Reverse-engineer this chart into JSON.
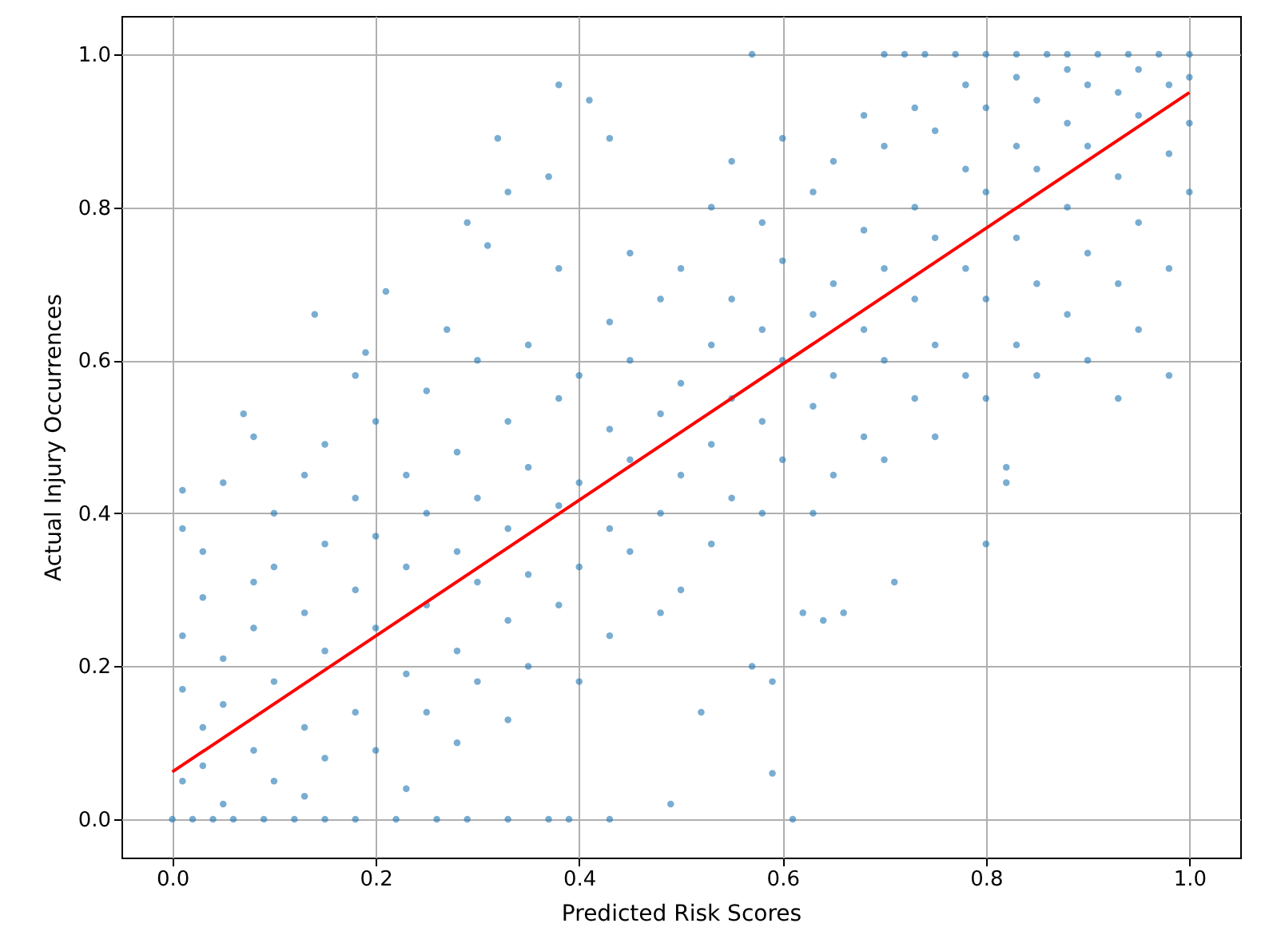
{
  "chart_data": {
    "type": "scatter",
    "xlabel": "Predicted Risk Scores",
    "ylabel": "Actual Injury Occurrences",
    "xlim": [
      -0.05,
      1.05
    ],
    "ylim": [
      -0.05,
      1.05
    ],
    "xticks": [
      {
        "value": 0,
        "label": "0.0"
      },
      {
        "value": 0.2,
        "label": "0.2"
      },
      {
        "value": 0.4,
        "label": "0.4"
      },
      {
        "value": 0.6,
        "label": "0.6"
      },
      {
        "value": 0.8,
        "label": "0.8"
      },
      {
        "value": 1,
        "label": "1.0"
      }
    ],
    "yticks": [
      {
        "value": 0,
        "label": "0.0"
      },
      {
        "value": 0.2,
        "label": "0.2"
      },
      {
        "value": 0.4,
        "label": "0.4"
      },
      {
        "value": 0.6,
        "label": "0.6"
      },
      {
        "value": 0.8,
        "label": "0.8"
      },
      {
        "value": 1,
        "label": "1.0"
      }
    ],
    "grid": true,
    "series": [
      {
        "color": "#1f77b4",
        "marker": "circle",
        "x": [
          0,
          0.02,
          0.04,
          0.06,
          0.09,
          0.12,
          0.15,
          0.18,
          0.22,
          0.26,
          0.29,
          0.33,
          0.37,
          0.39,
          0.43,
          0.57,
          0.7,
          0.72,
          0.74,
          0.77,
          0.8,
          0.83,
          0.86,
          0.88,
          0.91,
          0.94,
          0.97,
          1,
          0.38,
          0.41,
          0.32,
          0.43,
          0.37,
          0.33,
          0.29,
          0.31,
          0.21,
          0.14,
          0.19,
          0.07,
          0.27,
          0.59,
          0.61,
          0.49,
          0.59,
          0.57,
          0.52,
          0.8,
          0.82,
          0.82,
          0.71,
          0.66,
          0.64,
          0.62,
          0.01,
          0.01,
          0.01,
          0.01,
          0.01,
          0.03,
          0.03,
          0.03,
          0.03,
          0.05,
          0.05,
          0.05,
          0.05,
          0.08,
          0.08,
          0.08,
          0.08,
          0.1,
          0.1,
          0.1,
          0.1,
          0.13,
          0.13,
          0.13,
          0.13,
          0.15,
          0.15,
          0.15,
          0.15,
          0.18,
          0.18,
          0.18,
          0.18,
          0.2,
          0.2,
          0.2,
          0.2,
          0.23,
          0.23,
          0.23,
          0.23,
          0.25,
          0.25,
          0.25,
          0.25,
          0.28,
          0.28,
          0.28,
          0.28,
          0.3,
          0.3,
          0.3,
          0.3,
          0.33,
          0.33,
          0.33,
          0.33,
          0.35,
          0.35,
          0.35,
          0.35,
          0.38,
          0.38,
          0.38,
          0.38,
          0.4,
          0.4,
          0.4,
          0.4,
          0.43,
          0.43,
          0.43,
          0.43,
          0.45,
          0.45,
          0.45,
          0.45,
          0.48,
          0.48,
          0.48,
          0.48,
          0.5,
          0.5,
          0.5,
          0.5,
          0.53,
          0.53,
          0.53,
          0.53,
          0.55,
          0.55,
          0.55,
          0.55,
          0.58,
          0.58,
          0.58,
          0.58,
          0.6,
          0.6,
          0.6,
          0.6,
          0.63,
          0.63,
          0.63,
          0.63,
          0.65,
          0.65,
          0.65,
          0.65,
          0.68,
          0.68,
          0.68,
          0.68,
          0.7,
          0.7,
          0.7,
          0.7,
          0.73,
          0.73,
          0.73,
          0.73,
          0.75,
          0.75,
          0.75,
          0.75,
          0.78,
          0.78,
          0.78,
          0.78,
          0.8,
          0.8,
          0.8,
          0.8,
          0.83,
          0.83,
          0.83,
          0.83,
          0.85,
          0.85,
          0.85,
          0.85,
          0.88,
          0.88,
          0.88,
          0.88,
          0.9,
          0.9,
          0.9,
          0.9,
          0.93,
          0.93,
          0.93,
          0.93,
          0.95,
          0.95,
          0.95,
          0.95,
          0.98,
          0.98,
          0.98,
          0.98,
          1,
          1,
          1
        ],
        "values": [
          0,
          0,
          0,
          0,
          0,
          0,
          0,
          0,
          0,
          0,
          0,
          0,
          0,
          0,
          0,
          1,
          1,
          1,
          1,
          1,
          1,
          1,
          1,
          1,
          1,
          1,
          1,
          1,
          0.96,
          0.94,
          0.89,
          0.89,
          0.84,
          0.82,
          0.78,
          0.75,
          0.69,
          0.66,
          0.61,
          0.53,
          0.64,
          0.06,
          0,
          0.02,
          0.18,
          0.2,
          0.14,
          0.36,
          0.46,
          0.44,
          0.31,
          0.27,
          0.26,
          0.27,
          0.43,
          0.38,
          0.17,
          0.05,
          0.24,
          0.29,
          0.12,
          0.07,
          0.35,
          0.21,
          0.44,
          0.02,
          0.15,
          0.31,
          0.09,
          0.25,
          0.5,
          0.18,
          0.4,
          0.05,
          0.33,
          0.27,
          0.45,
          0.12,
          0.03,
          0.36,
          0.22,
          0.08,
          0.49,
          0.3,
          0.14,
          0.42,
          0.58,
          0.25,
          0.37,
          0.09,
          0.52,
          0.33,
          0.19,
          0.45,
          0.04,
          0.4,
          0.28,
          0.14,
          0.56,
          0.35,
          0.48,
          0.22,
          0.1,
          0.42,
          0.31,
          0.6,
          0.18,
          0.38,
          0.52,
          0.26,
          0.13,
          0.46,
          0.32,
          0.62,
          0.2,
          0.55,
          0.41,
          0.28,
          0.72,
          0.44,
          0.58,
          0.33,
          0.18,
          0.51,
          0.65,
          0.38,
          0.24,
          0.47,
          0.6,
          0.74,
          0.35,
          0.53,
          0.4,
          0.68,
          0.27,
          0.57,
          0.45,
          0.72,
          0.3,
          0.62,
          0.49,
          0.8,
          0.36,
          0.55,
          0.68,
          0.42,
          0.86,
          0.64,
          0.52,
          0.78,
          0.4,
          0.6,
          0.73,
          0.47,
          0.89,
          0.66,
          0.54,
          0.82,
          0.4,
          0.7,
          0.58,
          0.86,
          0.45,
          0.64,
          0.77,
          0.5,
          0.92,
          0.72,
          0.6,
          0.88,
          0.47,
          0.68,
          0.8,
          0.55,
          0.93,
          0.76,
          0.62,
          0.9,
          0.5,
          0.72,
          0.85,
          0.58,
          0.96,
          0.82,
          0.68,
          0.93,
          0.55,
          0.76,
          0.88,
          0.62,
          0.97,
          0.85,
          0.7,
          0.94,
          0.58,
          0.8,
          0.91,
          0.66,
          0.98,
          0.88,
          0.74,
          0.96,
          0.6,
          0.84,
          0.95,
          0.7,
          0.55,
          0.92,
          0.78,
          0.98,
          0.64,
          0.87,
          0.96,
          0.72,
          0.58,
          0.91,
          0.82,
          0.97
        ]
      },
      {
        "type": "line",
        "color": "#ff0000",
        "x": [
          0,
          1
        ],
        "values": [
          0.062,
          0.95
        ]
      }
    ]
  }
}
